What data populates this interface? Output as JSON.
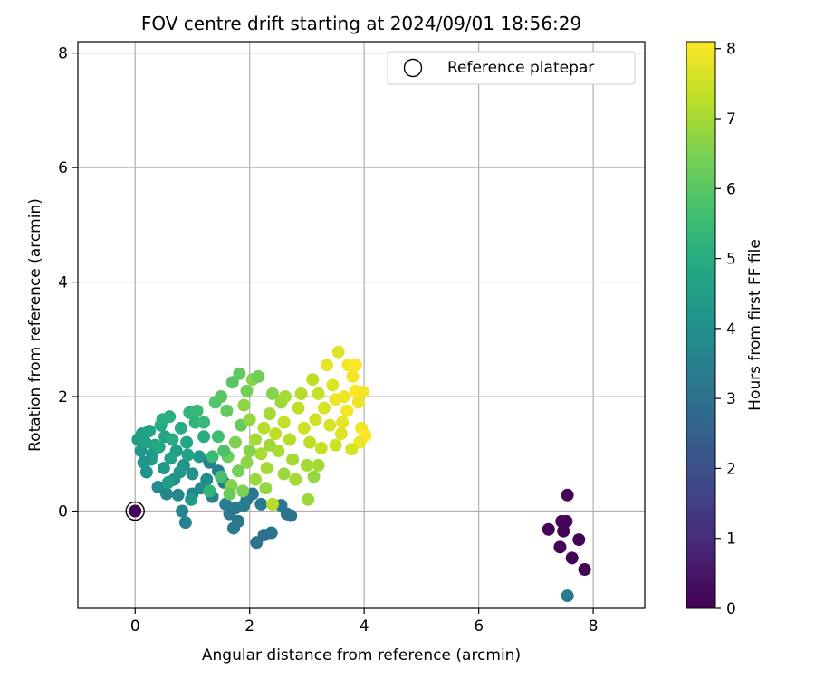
{
  "chart_data": {
    "type": "scatter",
    "title": "FOV centre drift starting at 2024/09/01 18:56:29",
    "xlabel": "Angular distance from reference (arcmin)",
    "ylabel": "Rotation from reference (arcmin)",
    "xlim": [
      -1.0,
      8.9
    ],
    "ylim": [
      -1.7,
      8.2
    ],
    "xticks": [
      0,
      2,
      4,
      6,
      8
    ],
    "yticks": [
      0,
      2,
      4,
      6,
      8
    ],
    "grid": true,
    "legend": {
      "placement": "top-right",
      "entries": [
        "Reference platepar"
      ]
    },
    "colorbar": {
      "label": "Hours from first FF file",
      "range": [
        0,
        8.1
      ],
      "ticks": [
        0,
        1,
        2,
        3,
        4,
        5,
        6,
        7,
        8
      ],
      "colormap": "viridis"
    },
    "reference": {
      "x": 0,
      "y": 0
    },
    "points": [
      {
        "x": 7.55,
        "y": 0.28,
        "h": 0.1
      },
      {
        "x": 7.45,
        "y": -0.18,
        "h": 0.1
      },
      {
        "x": 7.53,
        "y": -0.18,
        "h": 0.1
      },
      {
        "x": 7.22,
        "y": -0.32,
        "h": 0.1
      },
      {
        "x": 7.48,
        "y": -0.35,
        "h": 0.1
      },
      {
        "x": 7.75,
        "y": -0.5,
        "h": 0.1
      },
      {
        "x": 7.42,
        "y": -0.63,
        "h": 0.1
      },
      {
        "x": 7.63,
        "y": -0.82,
        "h": 0.1
      },
      {
        "x": 7.85,
        "y": -1.02,
        "h": 0.1
      },
      {
        "x": 7.55,
        "y": -1.48,
        "h": 3.3
      },
      {
        "x": 0.0,
        "y": 0.0,
        "h": 0.1
      },
      {
        "x": 0.05,
        "y": 1.25,
        "h": 4.4
      },
      {
        "x": 0.12,
        "y": 1.35,
        "h": 4.5
      },
      {
        "x": 0.1,
        "y": 1.05,
        "h": 4.3
      },
      {
        "x": 0.2,
        "y": 0.68,
        "h": 4.1
      },
      {
        "x": 0.28,
        "y": 0.9,
        "h": 4.6
      },
      {
        "x": 0.35,
        "y": 1.15,
        "h": 4.8
      },
      {
        "x": 0.45,
        "y": 1.5,
        "h": 4.9
      },
      {
        "x": 0.52,
        "y": 1.3,
        "h": 4.7
      },
      {
        "x": 0.6,
        "y": 1.65,
        "h": 5.1
      },
      {
        "x": 0.4,
        "y": 0.42,
        "h": 3.9
      },
      {
        "x": 0.55,
        "y": 0.3,
        "h": 3.7
      },
      {
        "x": 0.68,
        "y": 0.55,
        "h": 4.0
      },
      {
        "x": 0.72,
        "y": 1.05,
        "h": 4.5
      },
      {
        "x": 0.8,
        "y": 1.45,
        "h": 5.0
      },
      {
        "x": 0.9,
        "y": 1.2,
        "h": 4.8
      },
      {
        "x": 0.95,
        "y": 1.72,
        "h": 5.3
      },
      {
        "x": 1.05,
        "y": 1.55,
        "h": 5.2
      },
      {
        "x": 1.12,
        "y": 0.95,
        "h": 4.4
      },
      {
        "x": 0.85,
        "y": 0.8,
        "h": 4.2
      },
      {
        "x": 1.0,
        "y": 0.65,
        "h": 4.1
      },
      {
        "x": 1.15,
        "y": 0.4,
        "h": 3.9
      },
      {
        "x": 0.3,
        "y": 1.0,
        "h": 4.4
      },
      {
        "x": 0.5,
        "y": 0.75,
        "h": 4.3
      },
      {
        "x": 0.62,
        "y": 0.92,
        "h": 4.6
      },
      {
        "x": 0.75,
        "y": 0.28,
        "h": 3.8
      },
      {
        "x": 0.88,
        "y": -0.2,
        "h": 3.6
      },
      {
        "x": 0.82,
        "y": 0.0,
        "h": 3.7
      },
      {
        "x": 1.2,
        "y": 1.3,
        "h": 5.0
      },
      {
        "x": 0.18,
        "y": 1.2,
        "h": 4.6
      },
      {
        "x": 0.42,
        "y": 1.12,
        "h": 4.9
      },
      {
        "x": 0.65,
        "y": 1.25,
        "h": 5.0
      },
      {
        "x": 0.78,
        "y": 0.68,
        "h": 4.3
      },
      {
        "x": 0.92,
        "y": 0.98,
        "h": 4.7
      },
      {
        "x": 1.25,
        "y": 0.55,
        "h": 3.9
      },
      {
        "x": 1.35,
        "y": 0.25,
        "h": 3.6
      },
      {
        "x": 1.45,
        "y": 0.7,
        "h": 3.4
      },
      {
        "x": 1.55,
        "y": 0.5,
        "h": 3.3
      },
      {
        "x": 1.3,
        "y": 0.85,
        "h": 3.5
      },
      {
        "x": 1.0,
        "y": 0.3,
        "h": 3.6
      },
      {
        "x": 1.4,
        "y": 1.9,
        "h": 5.9
      },
      {
        "x": 1.5,
        "y": 2.0,
        "h": 6.0
      },
      {
        "x": 1.6,
        "y": 1.75,
        "h": 6.1
      },
      {
        "x": 1.58,
        "y": 0.12,
        "h": 3.4
      },
      {
        "x": 1.65,
        "y": -0.05,
        "h": 3.3
      },
      {
        "x": 1.75,
        "y": 0.05,
        "h": 3.2
      },
      {
        "x": 1.72,
        "y": -0.3,
        "h": 3.3
      },
      {
        "x": 1.8,
        "y": -0.18,
        "h": 3.2
      },
      {
        "x": 1.95,
        "y": 0.2,
        "h": 3.1
      },
      {
        "x": 2.05,
        "y": 0.3,
        "h": 3.2
      },
      {
        "x": 2.12,
        "y": -0.55,
        "h": 3.1
      },
      {
        "x": 2.25,
        "y": -0.42,
        "h": 3.0
      },
      {
        "x": 2.38,
        "y": -0.38,
        "h": 3.0
      },
      {
        "x": 2.55,
        "y": 0.1,
        "h": 3.2
      },
      {
        "x": 2.65,
        "y": -0.05,
        "h": 3.1
      },
      {
        "x": 2.72,
        "y": -0.08,
        "h": 3.1
      },
      {
        "x": 2.2,
        "y": 0.12,
        "h": 3.3
      },
      {
        "x": 1.9,
        "y": 0.1,
        "h": 3.4
      },
      {
        "x": 2.4,
        "y": 0.12,
        "h": 7.2
      },
      {
        "x": 1.68,
        "y": 0.45,
        "h": 6.6
      },
      {
        "x": 1.8,
        "y": 0.7,
        "h": 6.4
      },
      {
        "x": 1.62,
        "y": 0.95,
        "h": 6.3
      },
      {
        "x": 1.75,
        "y": 1.2,
        "h": 6.5
      },
      {
        "x": 1.85,
        "y": 1.5,
        "h": 6.2
      },
      {
        "x": 1.7,
        "y": 2.25,
        "h": 6.0
      },
      {
        "x": 1.82,
        "y": 2.4,
        "h": 6.1
      },
      {
        "x": 1.95,
        "y": 2.1,
        "h": 6.4
      },
      {
        "x": 2.05,
        "y": 2.3,
        "h": 6.6
      },
      {
        "x": 2.15,
        "y": 2.35,
        "h": 6.3
      },
      {
        "x": 1.9,
        "y": 1.85,
        "h": 6.7
      },
      {
        "x": 2.0,
        "y": 1.6,
        "h": 6.8
      },
      {
        "x": 2.1,
        "y": 1.25,
        "h": 7.0
      },
      {
        "x": 2.2,
        "y": 1.0,
        "h": 7.1
      },
      {
        "x": 2.3,
        "y": 0.75,
        "h": 7.0
      },
      {
        "x": 2.1,
        "y": 0.55,
        "h": 6.9
      },
      {
        "x": 1.95,
        "y": 0.85,
        "h": 6.7
      },
      {
        "x": 2.25,
        "y": 1.45,
        "h": 7.2
      },
      {
        "x": 2.35,
        "y": 1.7,
        "h": 7.0
      },
      {
        "x": 2.45,
        "y": 1.35,
        "h": 7.3
      },
      {
        "x": 2.5,
        "y": 1.05,
        "h": 7.1
      },
      {
        "x": 2.6,
        "y": 1.55,
        "h": 7.4
      },
      {
        "x": 2.7,
        "y": 1.25,
        "h": 7.2
      },
      {
        "x": 2.75,
        "y": 0.9,
        "h": 7.0
      },
      {
        "x": 2.85,
        "y": 1.8,
        "h": 7.3
      },
      {
        "x": 2.4,
        "y": 2.05,
        "h": 6.6
      },
      {
        "x": 2.55,
        "y": 1.9,
        "h": 6.9
      },
      {
        "x": 2.95,
        "y": 1.45,
        "h": 7.5
      },
      {
        "x": 3.05,
        "y": 1.2,
        "h": 7.3
      },
      {
        "x": 3.0,
        "y": 0.8,
        "h": 7.0
      },
      {
        "x": 3.12,
        "y": 0.6,
        "h": 6.8
      },
      {
        "x": 3.2,
        "y": 0.8,
        "h": 7.0
      },
      {
        "x": 3.02,
        "y": 0.2,
        "h": 6.9
      },
      {
        "x": 3.1,
        "y": 2.3,
        "h": 7.3
      },
      {
        "x": 3.2,
        "y": 2.05,
        "h": 7.4
      },
      {
        "x": 3.3,
        "y": 1.8,
        "h": 7.6
      },
      {
        "x": 3.35,
        "y": 2.55,
        "h": 7.8
      },
      {
        "x": 3.45,
        "y": 2.2,
        "h": 7.7
      },
      {
        "x": 3.55,
        "y": 2.78,
        "h": 7.7
      },
      {
        "x": 3.5,
        "y": 1.95,
        "h": 7.9
      },
      {
        "x": 3.62,
        "y": 1.55,
        "h": 7.8
      },
      {
        "x": 3.72,
        "y": 2.55,
        "h": 8.0
      },
      {
        "x": 3.8,
        "y": 2.35,
        "h": 8.0
      },
      {
        "x": 3.85,
        "y": 2.55,
        "h": 8.1
      },
      {
        "x": 3.7,
        "y": 1.75,
        "h": 8.0
      },
      {
        "x": 3.9,
        "y": 1.9,
        "h": 7.9
      },
      {
        "x": 3.95,
        "y": 1.45,
        "h": 8.0
      },
      {
        "x": 4.02,
        "y": 1.32,
        "h": 8.1
      },
      {
        "x": 3.92,
        "y": 1.2,
        "h": 7.9
      },
      {
        "x": 3.78,
        "y": 1.08,
        "h": 7.6
      },
      {
        "x": 3.6,
        "y": 1.35,
        "h": 7.7
      },
      {
        "x": 3.4,
        "y": 1.5,
        "h": 7.6
      },
      {
        "x": 3.25,
        "y": 1.1,
        "h": 7.4
      },
      {
        "x": 3.85,
        "y": 2.1,
        "h": 8.1
      },
      {
        "x": 3.98,
        "y": 2.08,
        "h": 8.0
      },
      {
        "x": 1.45,
        "y": 1.3,
        "h": 5.6
      },
      {
        "x": 1.55,
        "y": 1.05,
        "h": 5.8
      },
      {
        "x": 1.35,
        "y": 0.95,
        "h": 5.5
      },
      {
        "x": 1.5,
        "y": 0.6,
        "h": 5.7
      },
      {
        "x": 1.3,
        "y": 0.35,
        "h": 5.3
      },
      {
        "x": 1.65,
        "y": 0.3,
        "h": 6.2
      },
      {
        "x": 2.6,
        "y": 0.65,
        "h": 6.9
      },
      {
        "x": 2.8,
        "y": 0.55,
        "h": 7.0
      },
      {
        "x": 2.9,
        "y": 2.05,
        "h": 7.2
      },
      {
        "x": 0.25,
        "y": 1.4,
        "h": 4.7
      },
      {
        "x": 0.48,
        "y": 1.6,
        "h": 5.1
      },
      {
        "x": 1.08,
        "y": 1.75,
        "h": 5.4
      },
      {
        "x": 1.2,
        "y": 1.55,
        "h": 5.4
      },
      {
        "x": 0.98,
        "y": 0.2,
        "h": 4.4
      },
      {
        "x": 0.58,
        "y": 0.5,
        "h": 4.5
      },
      {
        "x": 0.15,
        "y": 0.85,
        "h": 4.2
      },
      {
        "x": 2.35,
        "y": 1.15,
        "h": 6.9
      },
      {
        "x": 2.0,
        "y": 1.05,
        "h": 6.6
      },
      {
        "x": 2.28,
        "y": 0.4,
        "h": 6.8
      },
      {
        "x": 1.88,
        "y": 0.35,
        "h": 6.5
      },
      {
        "x": 2.62,
        "y": 2.0,
        "h": 7.0
      },
      {
        "x": 3.15,
        "y": 1.6,
        "h": 7.5
      },
      {
        "x": 3.5,
        "y": 1.15,
        "h": 7.5
      },
      {
        "x": 3.65,
        "y": 2.0,
        "h": 7.9
      }
    ]
  }
}
